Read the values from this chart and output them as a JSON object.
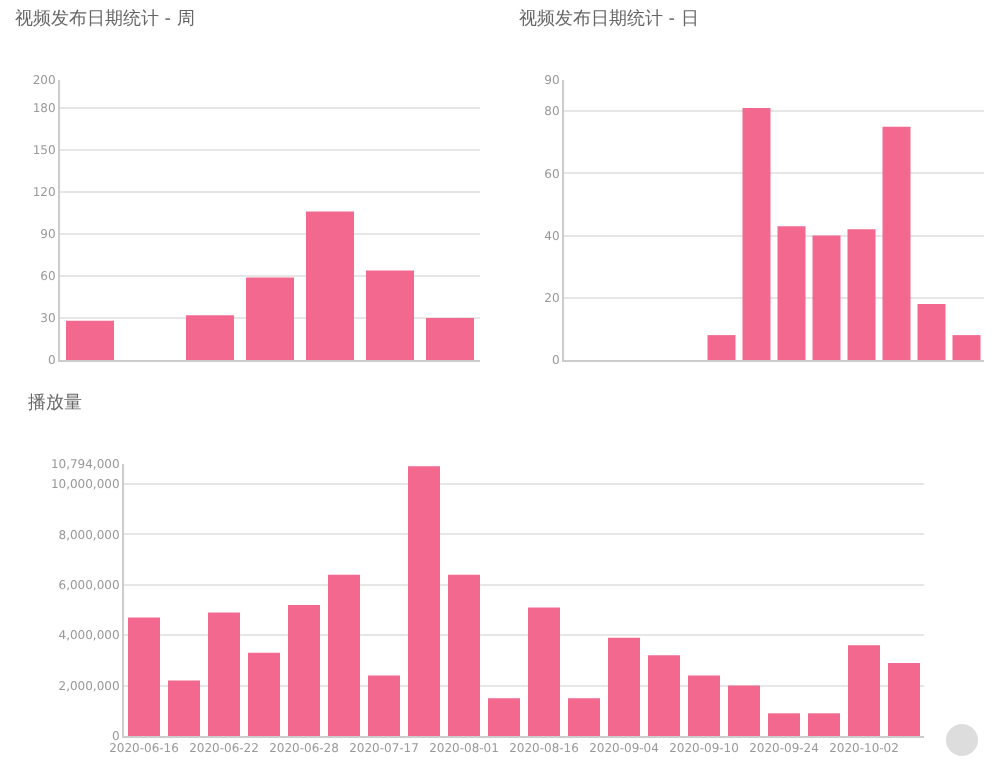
{
  "chart_data": [
    {
      "type": "bar",
      "title": "视频发布日期统计 - 周",
      "categories": [
        null,
        null,
        null,
        null,
        null,
        null,
        null
      ],
      "values": [
        28,
        null,
        32,
        59,
        106,
        64,
        30
      ],
      "color": "#f2688e",
      "ylim": [
        0,
        200
      ],
      "yticks": [
        0,
        30,
        60,
        90,
        120,
        150,
        180,
        200
      ],
      "grid": "y",
      "tick_labels": "y"
    },
    {
      "type": "bar",
      "title": "视频发布日期统计 - 日",
      "categories": [
        null,
        null,
        null,
        null,
        null,
        null,
        null,
        null,
        null,
        null,
        null,
        null
      ],
      "values": [
        null,
        null,
        null,
        null,
        8,
        81,
        43,
        40,
        42,
        75,
        18,
        8
      ],
      "color": "#f2688e",
      "ylim": [
        0,
        90
      ],
      "yticks": [
        0,
        20,
        40,
        60,
        80,
        90
      ],
      "grid": "y",
      "tick_labels": "y"
    },
    {
      "type": "bar",
      "title": "播放量",
      "categories": [
        "2020-06-16",
        null,
        "2020-06-22",
        null,
        "2020-06-28",
        null,
        "2020-07-17",
        null,
        "2020-08-01",
        null,
        "2020-08-16",
        null,
        "2020-09-04",
        null,
        "2020-09-10",
        null,
        "2020-09-24",
        null,
        "2020-10-02",
        null
      ],
      "values": [
        4700000,
        2200000,
        4900000,
        3300000,
        5200000,
        6400000,
        2400000,
        10700000,
        6400000,
        1500000,
        5100000,
        1500000,
        3900000,
        3200000,
        2400000,
        2000000,
        900000,
        900000,
        3600000,
        2900000
      ],
      "color": "#f2688e",
      "ylim": [
        0,
        10794000
      ],
      "yticks": [
        0,
        {
          "value": 2000000,
          "label": "2,000,000"
        },
        {
          "value": 4000000,
          "label": "4,000,000"
        },
        {
          "value": 6000000,
          "label": "6,000,000"
        },
        {
          "value": 8000000,
          "label": "8,000,000"
        },
        {
          "value": 10000000,
          "label": "10,000,000"
        },
        {
          "value": 10794000,
          "label": "10,794,000"
        }
      ],
      "grid": "y"
    }
  ]
}
